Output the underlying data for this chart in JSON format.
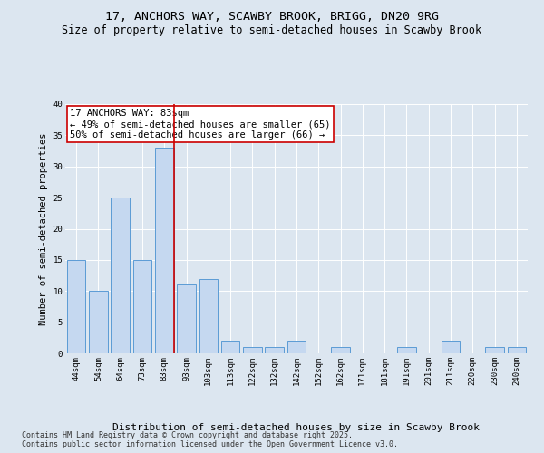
{
  "title": "17, ANCHORS WAY, SCAWBY BROOK, BRIGG, DN20 9RG",
  "subtitle": "Size of property relative to semi-detached houses in Scawby Brook",
  "xlabel": "Distribution of semi-detached houses by size in Scawby Brook",
  "ylabel": "Number of semi-detached properties",
  "categories": [
    "44sqm",
    "54sqm",
    "64sqm",
    "73sqm",
    "83sqm",
    "93sqm",
    "103sqm",
    "113sqm",
    "122sqm",
    "132sqm",
    "142sqm",
    "152sqm",
    "162sqm",
    "171sqm",
    "181sqm",
    "191sqm",
    "201sqm",
    "211sqm",
    "220sqm",
    "230sqm",
    "240sqm"
  ],
  "values": [
    15,
    10,
    25,
    15,
    33,
    11,
    12,
    2,
    1,
    1,
    2,
    0,
    1,
    0,
    0,
    1,
    0,
    2,
    0,
    1,
    1
  ],
  "bar_color": "#c5d8f0",
  "bar_edge_color": "#5b9bd5",
  "highlight_index": 4,
  "highlight_line_color": "#cc0000",
  "annotation_text": "17 ANCHORS WAY: 83sqm\n← 49% of semi-detached houses are smaller (65)\n50% of semi-detached houses are larger (66) →",
  "annotation_box_color": "#ffffff",
  "annotation_box_edge_color": "#cc0000",
  "background_color": "#dce6f0",
  "plot_bg_color": "#dce6f0",
  "ylim": [
    0,
    40
  ],
  "yticks": [
    0,
    5,
    10,
    15,
    20,
    25,
    30,
    35,
    40
  ],
  "footer_text": "Contains HM Land Registry data © Crown copyright and database right 2025.\nContains public sector information licensed under the Open Government Licence v3.0.",
  "title_fontsize": 9.5,
  "subtitle_fontsize": 8.5,
  "xlabel_fontsize": 8,
  "ylabel_fontsize": 7.5,
  "tick_fontsize": 6.5,
  "annotation_fontsize": 7.5,
  "footer_fontsize": 6
}
